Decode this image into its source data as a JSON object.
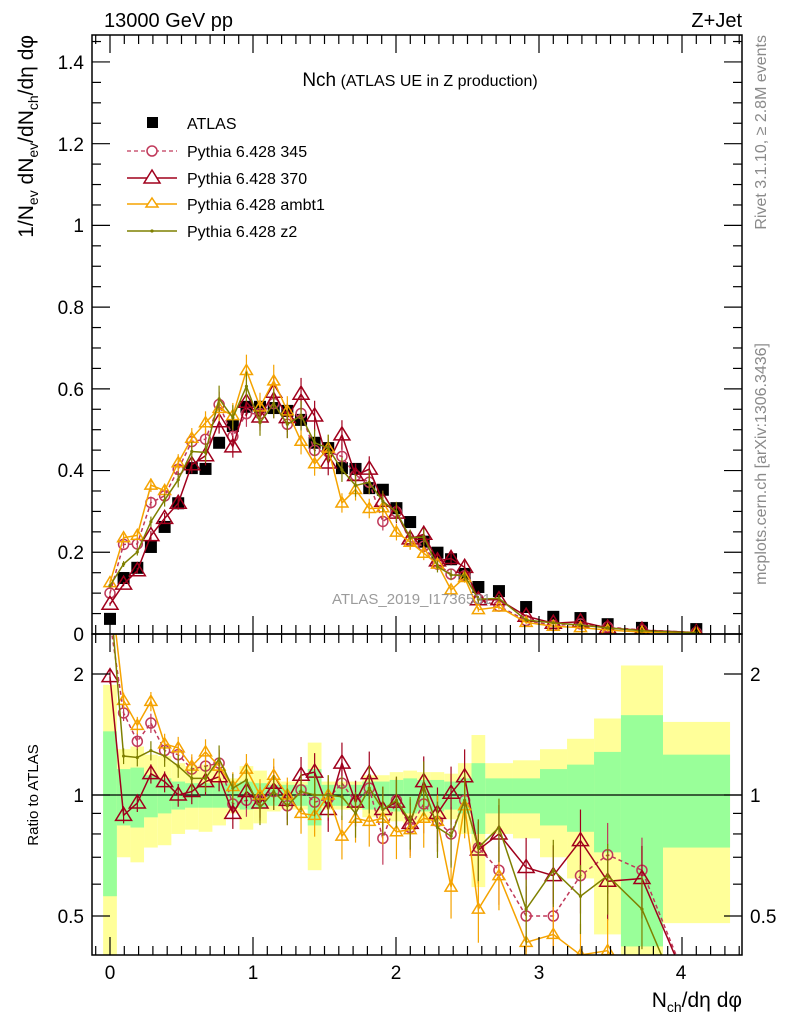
{
  "chart_data": {
    "type": "line",
    "header_left": "13000 GeV pp",
    "header_right": "Z+Jet",
    "title_main": "Nch",
    "title_sub": "(ATLAS UE in Z production)",
    "ylabel_parts": [
      "1/N",
      "ev",
      " dN",
      "ev",
      "/dN",
      "ch",
      "/dη dφ"
    ],
    "xlabel_parts": [
      "N",
      "ch",
      "/dη dφ"
    ],
    "ratio_ylabel": "Ratio to ATLAS",
    "side_text_top": "Rivet 3.1.10, ≥ 2.8M events",
    "side_text_bottom": "mcplots.cern.ch [arXiv:1306.3436]",
    "watermark": "ATLAS_2019_I1736531",
    "xlim": [
      -0.13,
      4.4
    ],
    "ylim": [
      0,
      1.47
    ],
    "ratio_ylim": [
      0.4,
      2.52
    ],
    "ratio_scale": "log",
    "x_ticks": [
      "0",
      "1",
      "2",
      "3",
      "4"
    ],
    "y_ticks": [
      "0",
      "0.2",
      "0.4",
      "0.6",
      "0.8",
      "1",
      "1.2",
      "1.4"
    ],
    "ratio_ticks": [
      "0.5",
      "1",
      "2"
    ],
    "legend_position": "top-left",
    "x": [
      0,
      0.095,
      0.191,
      0.286,
      0.382,
      0.477,
      0.572,
      0.668,
      0.763,
      0.859,
      0.954,
      1.049,
      1.145,
      1.24,
      1.336,
      1.431,
      1.526,
      1.622,
      1.717,
      1.813,
      1.908,
      2.003,
      2.099,
      2.194,
      2.29,
      2.385,
      2.48,
      2.576,
      2.72,
      2.91,
      3.1,
      3.29,
      3.48,
      3.72,
      4.1
    ],
    "bin_edges": [
      -0.048,
      0.048,
      0.143,
      0.238,
      0.334,
      0.429,
      0.525,
      0.62,
      0.716,
      0.811,
      0.906,
      1.002,
      1.097,
      1.193,
      1.288,
      1.383,
      1.479,
      1.574,
      1.67,
      1.765,
      1.86,
      1.956,
      2.051,
      2.147,
      2.242,
      2.337,
      2.433,
      2.528,
      2.624,
      2.818,
      3.007,
      3.196,
      3.385,
      3.573,
      3.867,
      4.336
    ],
    "data": {
      "name": "ATLAS",
      "color": "#000000",
      "values": [
        0.037,
        0.137,
        0.162,
        0.213,
        0.262,
        0.32,
        0.406,
        0.404,
        0.468,
        0.509,
        0.556,
        0.556,
        0.553,
        0.546,
        0.524,
        0.468,
        0.455,
        0.406,
        0.404,
        0.357,
        0.353,
        0.308,
        0.274,
        0.226,
        0.199,
        0.183,
        0.147,
        0.115,
        0.105,
        0.066,
        0.042,
        0.039,
        0.024,
        0.015,
        0.012
      ],
      "stat_err_frac": [
        0.44,
        0.16,
        0.17,
        0.12,
        0.1,
        0.08,
        0.07,
        0.07,
        0.07,
        0.07,
        0.08,
        0.07,
        0.06,
        0.06,
        0.06,
        0.16,
        0.06,
        0.06,
        0.06,
        0.08,
        0.08,
        0.09,
        0.1,
        0.09,
        0.09,
        0.08,
        0.1,
        0.2,
        0.1,
        0.1,
        0.16,
        0.19,
        0.28,
        0.58,
        0.26
      ],
      "total_err_frac": [
        0.88,
        0.3,
        0.32,
        0.26,
        0.25,
        0.2,
        0.18,
        0.19,
        0.16,
        0.1,
        0.18,
        0.15,
        0.09,
        0.08,
        0.08,
        0.35,
        0.08,
        0.08,
        0.08,
        0.12,
        0.12,
        0.14,
        0.15,
        0.14,
        0.14,
        0.13,
        0.2,
        0.41,
        0.2,
        0.22,
        0.3,
        0.38,
        0.55,
        1.1,
        0.52
      ]
    },
    "series": [
      {
        "name": "Pythia 6.428 345",
        "color": "#c0395a",
        "marker": "open-circle",
        "dashed": true,
        "ratio": [
          2.7,
          1.6,
          1.36,
          1.51,
          1.29,
          1.26,
          1.16,
          1.18,
          1.2,
          0.95,
          0.97,
          0.97,
          1.02,
          0.94,
          1.03,
          0.96,
          0.98,
          1.07,
          0.96,
          1.04,
          0.78,
          0.97,
          0.83,
          0.95,
          0.86,
          0.8,
          0.97,
          0.74,
          0.65,
          0.5,
          0.5,
          0.63,
          0.71,
          0.65,
          0.3
        ]
      },
      {
        "name": "Pythia 6.428 370",
        "color": "#a0001c",
        "marker": "open-triangle",
        "dashed": false,
        "ratio": [
          1.97,
          0.89,
          0.955,
          1.13,
          1.08,
          1.0,
          1.02,
          1.08,
          1.11,
          0.9,
          1.02,
          0.955,
          1.07,
          0.97,
          1.12,
          1.14,
          0.92,
          1.2,
          0.96,
          1.13,
          0.92,
          0.96,
          0.85,
          1.08,
          0.9,
          1.01,
          1.11,
          0.73,
          0.8,
          0.66,
          0.63,
          0.77,
          0.61,
          0.62,
          0.3
        ]
      },
      {
        "name": "Pythia 6.428 ambt1",
        "color": "#f5a300",
        "marker": "small-open-triangle",
        "dashed": false,
        "ratio": [
          3.4,
          1.72,
          1.49,
          1.71,
          1.34,
          1.31,
          1.18,
          1.28,
          1.18,
          1.05,
          1.16,
          1.0,
          1.12,
          1.0,
          0.9,
          0.89,
          1.0,
          0.79,
          0.875,
          0.86,
          0.875,
          0.81,
          0.82,
          0.875,
          0.86,
          0.59,
          0.94,
          0.52,
          0.63,
          0.43,
          0.45,
          0.4,
          0.41,
          0.3,
          0.3
        ]
      },
      {
        "name": "Pythia 6.428 z2",
        "color": "#7f8000",
        "marker": "dot",
        "dashed": false,
        "ratio": [
          3.2,
          1.25,
          1.24,
          1.29,
          1.25,
          1.18,
          1.1,
          1.1,
          1.23,
          1.04,
          1.09,
          0.93,
          1.02,
          0.94,
          1.02,
          1.0,
          1.0,
          0.99,
          0.9,
          1.04,
          0.92,
          0.97,
          0.86,
          1.05,
          0.83,
          0.79,
          0.97,
          0.74,
          0.83,
          0.52,
          0.65,
          0.56,
          0.63,
          0.52,
          0.25
        ]
      }
    ],
    "mc_rel_err": 0.04,
    "band_colors": {
      "stat": "#99ff99",
      "total": "#ffff99"
    }
  }
}
